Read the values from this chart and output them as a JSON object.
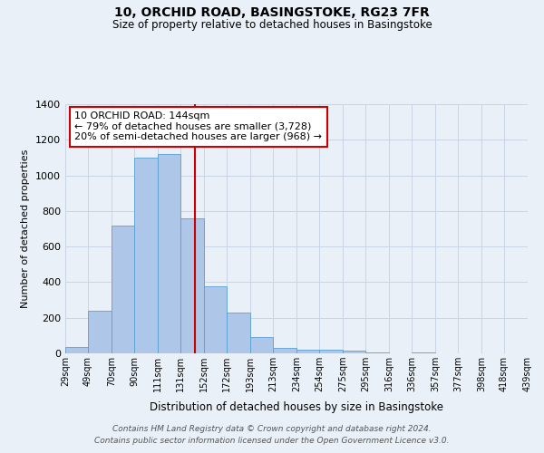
{
  "title": "10, ORCHID ROAD, BASINGSTOKE, RG23 7FR",
  "subtitle": "Size of property relative to detached houses in Basingstoke",
  "xlabel": "Distribution of detached houses by size in Basingstoke",
  "ylabel": "Number of detached properties",
  "bar_left_edges": [
    29,
    49,
    70,
    90,
    111,
    131,
    152,
    172,
    193,
    213,
    234,
    254,
    275,
    295,
    316,
    336,
    357,
    377,
    398,
    418
  ],
  "bar_heights": [
    35,
    240,
    720,
    1100,
    1120,
    760,
    375,
    230,
    90,
    30,
    20,
    20,
    15,
    5,
    0,
    5,
    0,
    0,
    0,
    0
  ],
  "bar_widths": [
    20,
    21,
    20,
    21,
    20,
    21,
    20,
    21,
    20,
    21,
    20,
    21,
    20,
    21,
    20,
    21,
    20,
    21,
    20,
    21
  ],
  "tick_labels": [
    "29sqm",
    "49sqm",
    "70sqm",
    "90sqm",
    "111sqm",
    "131sqm",
    "152sqm",
    "172sqm",
    "193sqm",
    "213sqm",
    "234sqm",
    "254sqm",
    "275sqm",
    "295sqm",
    "316sqm",
    "336sqm",
    "357sqm",
    "377sqm",
    "398sqm",
    "418sqm",
    "439sqm"
  ],
  "bar_color": "#aec6e8",
  "bar_edge_color": "#5a9fd4",
  "vline_x": 144,
  "vline_color": "#cc0000",
  "ylim": [
    0,
    1400
  ],
  "yticks": [
    0,
    200,
    400,
    600,
    800,
    1000,
    1200,
    1400
  ],
  "annotation_title": "10 ORCHID ROAD: 144sqm",
  "annotation_line1": "← 79% of detached houses are smaller (3,728)",
  "annotation_line2": "20% of semi-detached houses are larger (968) →",
  "annotation_box_color": "#ffffff",
  "annotation_box_edge_color": "#cc0000",
  "background_color": "#eaf0f8",
  "grid_color": "#c8d4e4",
  "footer1": "Contains HM Land Registry data © Crown copyright and database right 2024.",
  "footer2": "Contains public sector information licensed under the Open Government Licence v3.0."
}
